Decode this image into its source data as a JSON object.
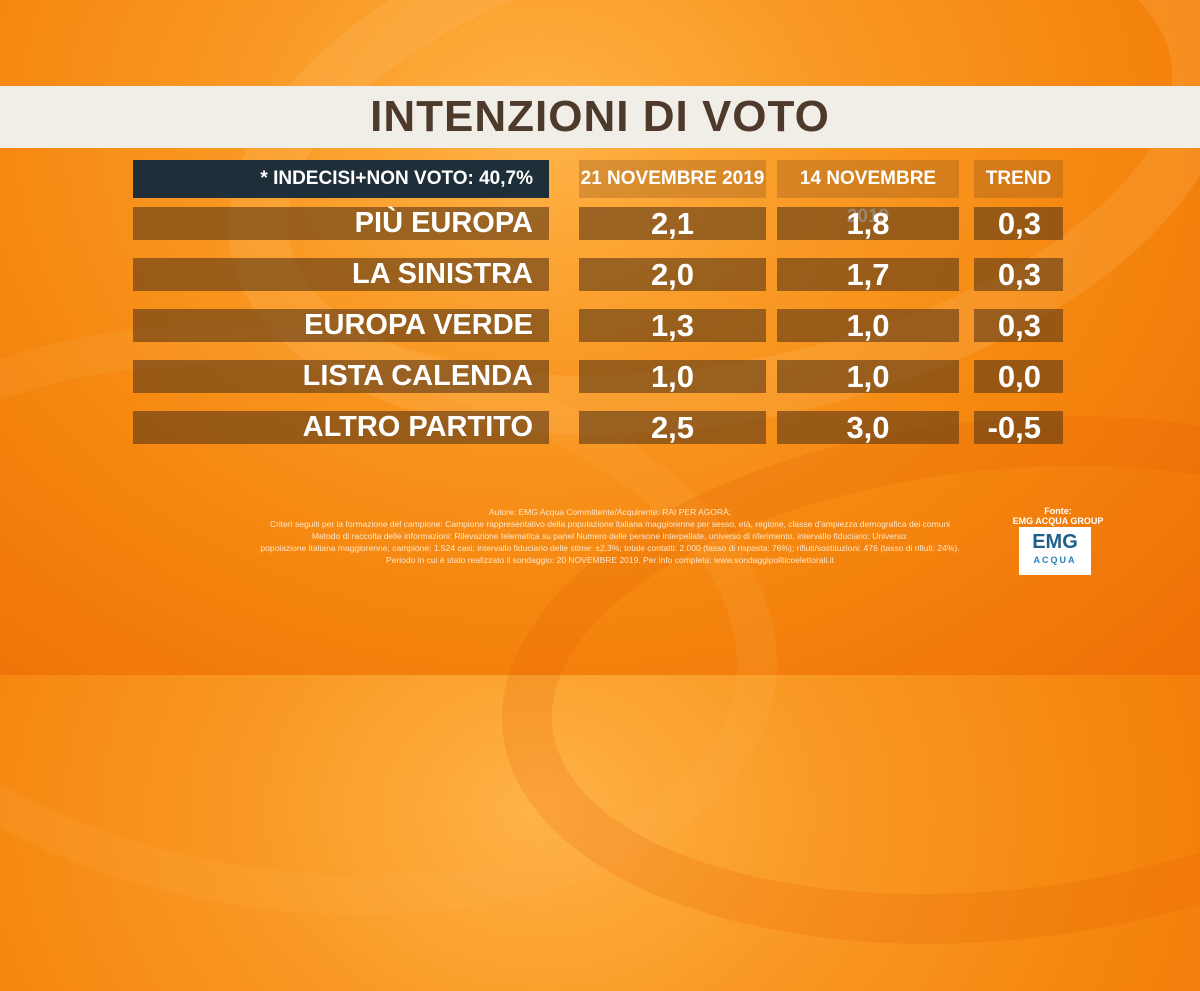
{
  "title": "INTENZIONI DI VOTO",
  "note": "* INDECISI+NON VOTO: 40,7%",
  "chart_data": {
    "type": "table",
    "title": "INTENZIONI DI VOTO",
    "columns": [
      "21 NOVEMBRE 2019",
      "14 NOVEMBRE 2019",
      "TREND"
    ],
    "rows": [
      {
        "party": "PIÙ EUROPA",
        "values": [
          "2,1",
          "1,8",
          "0,3"
        ]
      },
      {
        "party": "LA SINISTRA",
        "values": [
          "2,0",
          "1,7",
          "0,3"
        ]
      },
      {
        "party": "EUROPA VERDE",
        "values": [
          "1,3",
          "1,0",
          "0,3"
        ]
      },
      {
        "party": "LISTA CALENDA",
        "values": [
          "1,0",
          "1,0",
          "0,0"
        ]
      },
      {
        "party": "ALTRO PARTITO",
        "values": [
          "2,5",
          "3,0",
          "-0,5"
        ]
      }
    ]
  },
  "footnote": [
    "Autore: EMG Acqua Committente/Acquirente: RAI PER AGORÀ;",
    "Criteri seguiti per la formazione del campione: Campione rappresentativo della popolazione italiana maggiorenne per sesso, età, regione, classe d'ampiezza demografica dei comuni",
    "Metodo di raccolta delle informazioni: Rilevazione telematica su panel Numero delle persone interpellate, universo di riferimento, intervallo fiduciario: Universo:",
    "popolazione italiana maggiorenne; campione: 1.524 casi; intervallo fiduciario delle stime: ±2,3%; totale contatti: 2.000 (tasso di risposta: 76%); rifiuti/sostituzioni: 476 (tasso di rifiuti: 24%).",
    "Periodo in cui è stato realizzato il sondaggio: 20 NOVEMBRE 2019. Per info completa: www.sondaggipoliticoelettorali.it"
  ],
  "source": {
    "label_line1": "Fonte:",
    "label_line2": "EMG ACQUA GROUP",
    "logo_main": "EMG",
    "logo_sub": "ACQUA"
  }
}
